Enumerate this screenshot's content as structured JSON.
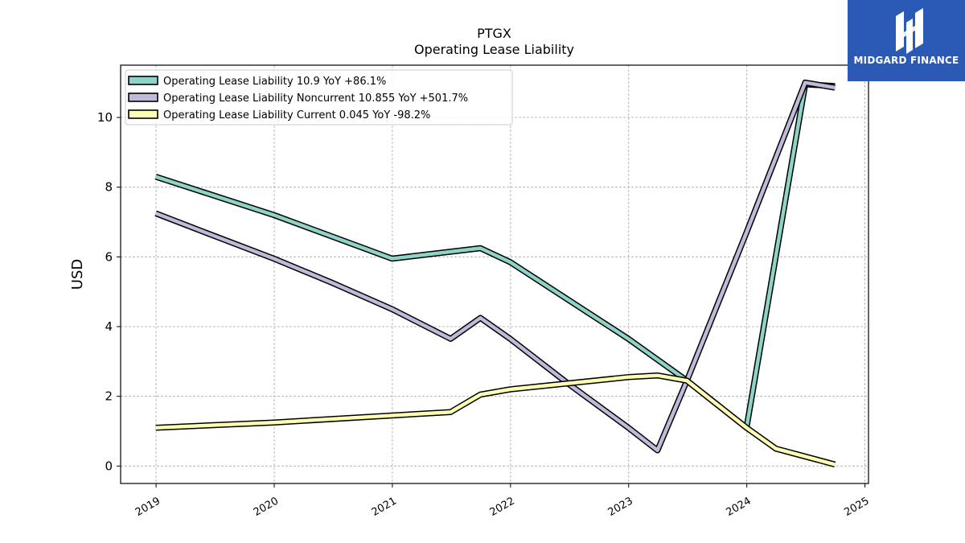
{
  "header": {
    "title": "PTGX",
    "subtitle": "Operating Lease Liability"
  },
  "brand": {
    "name": "MIDGARD FINANCE",
    "color": "#2a5ab5"
  },
  "chart_data": {
    "type": "line",
    "title": "PTGX",
    "subtitle": "Operating Lease Liability",
    "xlabel": "",
    "ylabel": "USD",
    "xlim": [
      2018.7,
      2025.03
    ],
    "ylim": [
      -0.5,
      11.5
    ],
    "xticks": [
      2019,
      2020,
      2021,
      2022,
      2023,
      2024,
      2025
    ],
    "yticks": [
      0,
      2,
      4,
      6,
      8,
      10
    ],
    "grid": true,
    "legend_position": "top-left",
    "series": [
      {
        "name": "Operating Lease Liability",
        "legend_label": "Operating Lease Liability  10.9 YoY +86.1%",
        "color": "#8dd3c7",
        "x": [
          "2018-12-31",
          "2019-12-31",
          "2020-12-31",
          "2021-09-30",
          "2021-12-31",
          "2022-12-31",
          "2023-06-30",
          "2023-12-31",
          "2024-06-30",
          "2024-09-30"
        ],
        "y": [
          8.3,
          7.2,
          5.95,
          6.25,
          5.85,
          3.65,
          2.45,
          1.1,
          10.95,
          10.9
        ]
      },
      {
        "name": "Operating Lease Liability Noncurrent",
        "legend_label": "Operating Lease Liability Noncurrent  10.855 YoY +501.7%",
        "color": "#bebada",
        "x": [
          "2018-12-31",
          "2019-06-30",
          "2019-12-31",
          "2020-06-30",
          "2020-12-31",
          "2021-06-30",
          "2021-09-30",
          "2021-12-31",
          "2022-06-30",
          "2022-12-31",
          "2023-03-31",
          "2023-06-30",
          "2023-12-31",
          "2024-06-30",
          "2024-09-30"
        ],
        "y": [
          7.25,
          6.6,
          5.95,
          5.25,
          4.5,
          3.65,
          4.25,
          3.65,
          2.35,
          1.1,
          0.45,
          2.45,
          6.7,
          11.0,
          10.855
        ]
      },
      {
        "name": "Operating Lease Liability Current",
        "legend_label": "Operating Lease Liability Current  0.045 YoY -98.2%",
        "color": "#ffffb3",
        "x": [
          "2018-12-31",
          "2019-12-31",
          "2020-12-31",
          "2021-06-30",
          "2021-09-30",
          "2021-12-31",
          "2022-12-31",
          "2023-03-31",
          "2023-06-30",
          "2023-12-31",
          "2024-03-31",
          "2024-09-30"
        ],
        "y": [
          1.1,
          1.25,
          1.45,
          1.55,
          2.05,
          2.2,
          2.55,
          2.6,
          2.45,
          1.1,
          0.5,
          0.045
        ]
      }
    ]
  }
}
